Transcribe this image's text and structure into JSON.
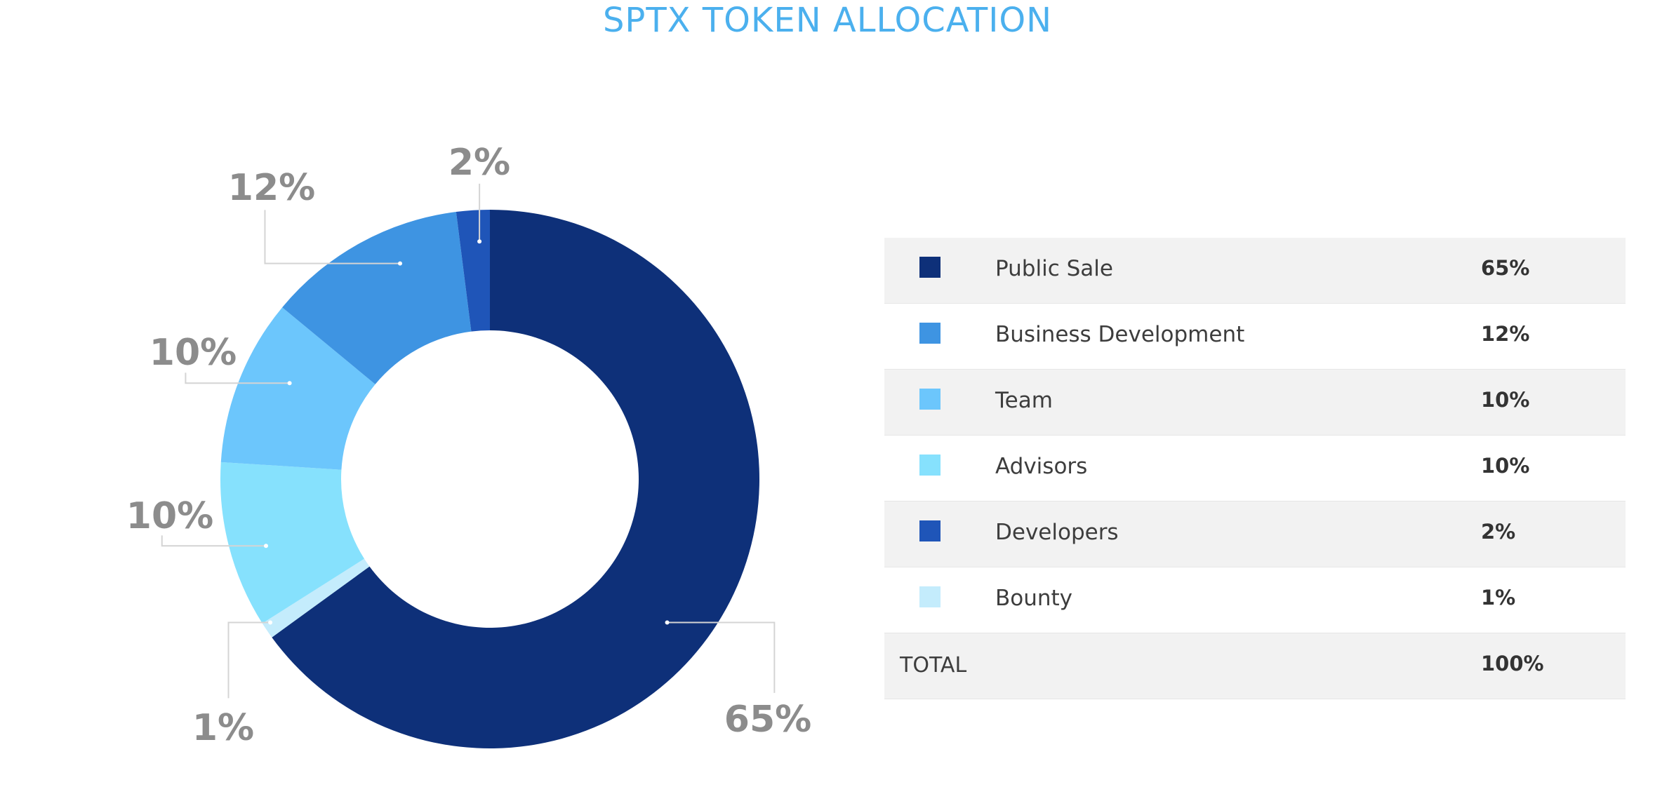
{
  "title": "SPTX TOKEN ALLOCATION",
  "chart_data": {
    "type": "pie",
    "title": "SPTX TOKEN ALLOCATION",
    "categories": [
      "Public Sale",
      "Business Development",
      "Team",
      "Advisors",
      "Developers",
      "Bounty"
    ],
    "values": [
      65,
      12,
      10,
      10,
      2,
      1
    ],
    "value_labels": [
      "65%",
      "12%",
      "10%",
      "10%",
      "2%",
      "1%"
    ],
    "colors": [
      "#0e3079",
      "#3e94e2",
      "#6cc6fc",
      "#86e1fd",
      "#1f55b8",
      "#c4ecfc"
    ],
    "donut": true,
    "legend_placement": "right"
  },
  "legend": {
    "rows": [
      {
        "label": "Public Sale",
        "value": "65%",
        "color": "#0e3079"
      },
      {
        "label": "Business Development",
        "value": "12%",
        "color": "#3e94e2"
      },
      {
        "label": "Team",
        "value": "10%",
        "color": "#6cc6fc"
      },
      {
        "label": "Advisors",
        "value": "10%",
        "color": "#86e1fd"
      },
      {
        "label": "Developers",
        "value": "2%",
        "color": "#1f55b8"
      },
      {
        "label": "Bounty",
        "value": "1%",
        "color": "#c4ecfc"
      }
    ],
    "total_label": "TOTAL",
    "total_value": "100%"
  }
}
